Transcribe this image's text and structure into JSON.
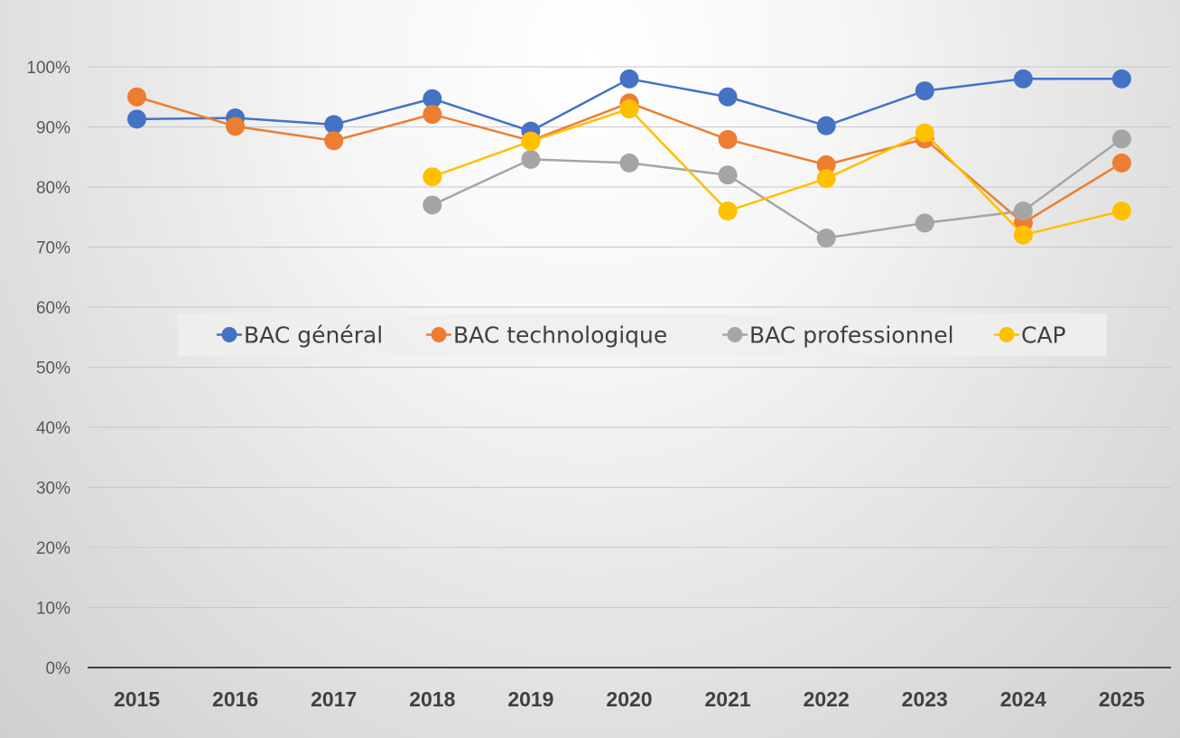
{
  "chart_data": {
    "type": "line",
    "title": "",
    "xlabel": "",
    "ylabel": "",
    "categories": [
      "2015",
      "2016",
      "2017",
      "2018",
      "2019",
      "2020",
      "2021",
      "2022",
      "2023",
      "2024",
      "2025"
    ],
    "ylim": [
      0,
      100
    ],
    "yticks": [
      0,
      10,
      20,
      30,
      40,
      50,
      60,
      70,
      80,
      90,
      100
    ],
    "ytick_labels": [
      "0%",
      "10%",
      "20%",
      "30%",
      "40%",
      "50%",
      "60%",
      "70%",
      "80%",
      "90%",
      "100%"
    ],
    "grid": true,
    "legend_position": "center",
    "series": [
      {
        "name": "BAC général",
        "color": "#4472C4",
        "values": [
          91.3,
          91.5,
          90.4,
          94.7,
          89.3,
          98.0,
          95.0,
          90.2,
          96.0,
          98.0,
          98.0
        ]
      },
      {
        "name": "BAC technologique",
        "color": "#ED7D31",
        "values": [
          95.0,
          90.1,
          87.7,
          92.1,
          87.7,
          94.0,
          87.9,
          83.7,
          88.0,
          74.0,
          84.0
        ]
      },
      {
        "name": "BAC professionnel",
        "color": "#A5A5A5",
        "values": [
          null,
          null,
          null,
          77.0,
          84.6,
          84.0,
          82.0,
          71.5,
          74.0,
          76.0,
          88.0
        ]
      },
      {
        "name": "CAP",
        "color": "#FFC000",
        "values": [
          null,
          null,
          null,
          81.7,
          87.6,
          93.0,
          76.0,
          81.4,
          89.0,
          72.0,
          76.0
        ]
      }
    ]
  }
}
